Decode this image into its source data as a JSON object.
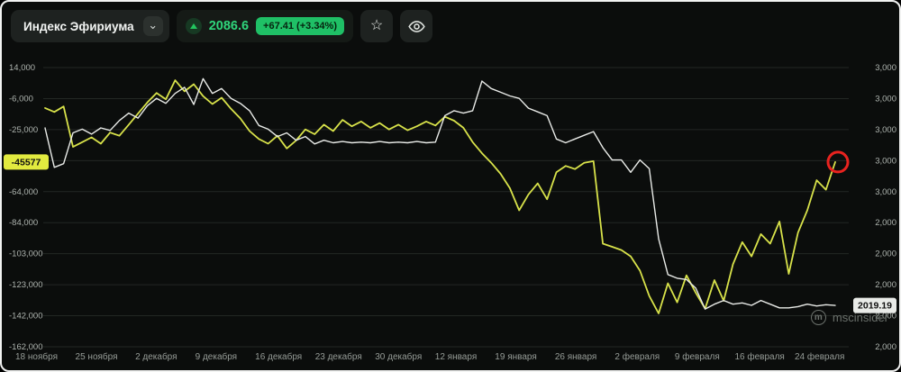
{
  "header": {
    "instrument_name": "Индекс Эфириума",
    "chevron_glyph": "⌄",
    "price_value": "2086.6",
    "change_text": "+67.41 (+3.34%)",
    "star_glyph": "☆"
  },
  "watermark": {
    "text": "mscinsider",
    "icon_letter": "m"
  },
  "colors": {
    "bg": "#0b0d0c",
    "grid": "#232724",
    "axis_text": "#aeb4af",
    "date_text": "#969c97",
    "line_yellow": "#d8e24a",
    "line_white": "#e9ebe8",
    "annotation_red": "#e8231f",
    "badge_yellow": "#e2ea3f",
    "badge_white": "#e9ebe8",
    "badge_text": "#101010",
    "accent_green": "#22c55e"
  },
  "chart_data": {
    "type": "line",
    "title": "Индекс Эфириума",
    "legend": "none",
    "grid": "horizontal",
    "x_labels": [
      "18 ноября",
      "25 ноября",
      "2 декабря",
      "9 декабря",
      "16 декабря",
      "23 декабря",
      "30 декабря",
      "12 января",
      "19 января",
      "26 января",
      "2 февраля",
      "9 февраля",
      "16 февраля",
      "24 февраля"
    ],
    "left_axis": {
      "labels": [
        "14,000",
        "-6,000",
        "-25,000",
        "-45,000",
        "-64,000",
        "-84,000",
        "-103,000",
        "-123,000",
        "-142,000",
        "-162,000"
      ],
      "ylim": [
        -162000,
        14000
      ],
      "current_value": -45577,
      "current_value_label": "-45577"
    },
    "right_axis": {
      "labels": [
        "3,000",
        "3,000",
        "3,000",
        "3,000",
        "3,000",
        "2,000",
        "2,000",
        "2,000",
        "2,000",
        "2,000"
      ],
      "ylim": [
        1684,
        3950
      ],
      "current_value": 2019.19,
      "current_value_label": "2019.19"
    },
    "series": [
      {
        "name": "index-pnl",
        "axis": "left",
        "color": "#d8e24a",
        "width": 1.8,
        "values": [
          -11500,
          -14000,
          -10500,
          -36000,
          -33000,
          -30000,
          -34000,
          -27000,
          -29000,
          -22000,
          -15000,
          -8000,
          -2000,
          -6000,
          6000,
          -1000,
          3500,
          -4000,
          -9000,
          -5000,
          -12000,
          -18000,
          -26000,
          -31000,
          -34000,
          -29000,
          -37000,
          -32000,
          -25000,
          -28000,
          -22000,
          -26000,
          -19000,
          -23000,
          -20000,
          -24000,
          -21000,
          -25000,
          -22000,
          -25500,
          -23000,
          -20000,
          -22500,
          -17000,
          -19500,
          -24000,
          -33000,
          -40000,
          -46000,
          -53000,
          -62000,
          -76000,
          -66000,
          -59000,
          -69000,
          -52000,
          -48000,
          -50000,
          -46000,
          -45000,
          -97000,
          -99000,
          -101000,
          -105000,
          -114000,
          -130000,
          -141000,
          -122000,
          -134000,
          -117000,
          -128000,
          -138000,
          -120000,
          -133000,
          -110000,
          -96000,
          -105000,
          -91000,
          -97000,
          -83000,
          -116000,
          -90000,
          -76000,
          -57000,
          -63000,
          -45577
        ]
      },
      {
        "name": "eth-price",
        "axis": "right",
        "color": "#e9ebe8",
        "width": 1.4,
        "values": [
          3460,
          3140,
          3170,
          3420,
          3450,
          3410,
          3460,
          3440,
          3520,
          3580,
          3540,
          3640,
          3700,
          3660,
          3740,
          3790,
          3650,
          3860,
          3740,
          3780,
          3700,
          3660,
          3600,
          3480,
          3450,
          3390,
          3420,
          3360,
          3390,
          3330,
          3360,
          3340,
          3350,
          3340,
          3345,
          3340,
          3350,
          3340,
          3345,
          3340,
          3350,
          3340,
          3345,
          3560,
          3600,
          3580,
          3600,
          3840,
          3780,
          3750,
          3720,
          3700,
          3620,
          3590,
          3560,
          3370,
          3340,
          3370,
          3400,
          3430,
          3300,
          3200,
          3200,
          3100,
          3200,
          3130,
          2560,
          2270,
          2240,
          2230,
          2160,
          1990,
          2030,
          2060,
          2030,
          2040,
          2020,
          2060,
          2030,
          2000,
          2000,
          2010,
          2030,
          2015,
          2025,
          2019.19
        ]
      }
    ],
    "annotations": [
      {
        "type": "circle",
        "series": "index-pnl",
        "position": "last-point",
        "color": "#e8231f"
      }
    ]
  }
}
